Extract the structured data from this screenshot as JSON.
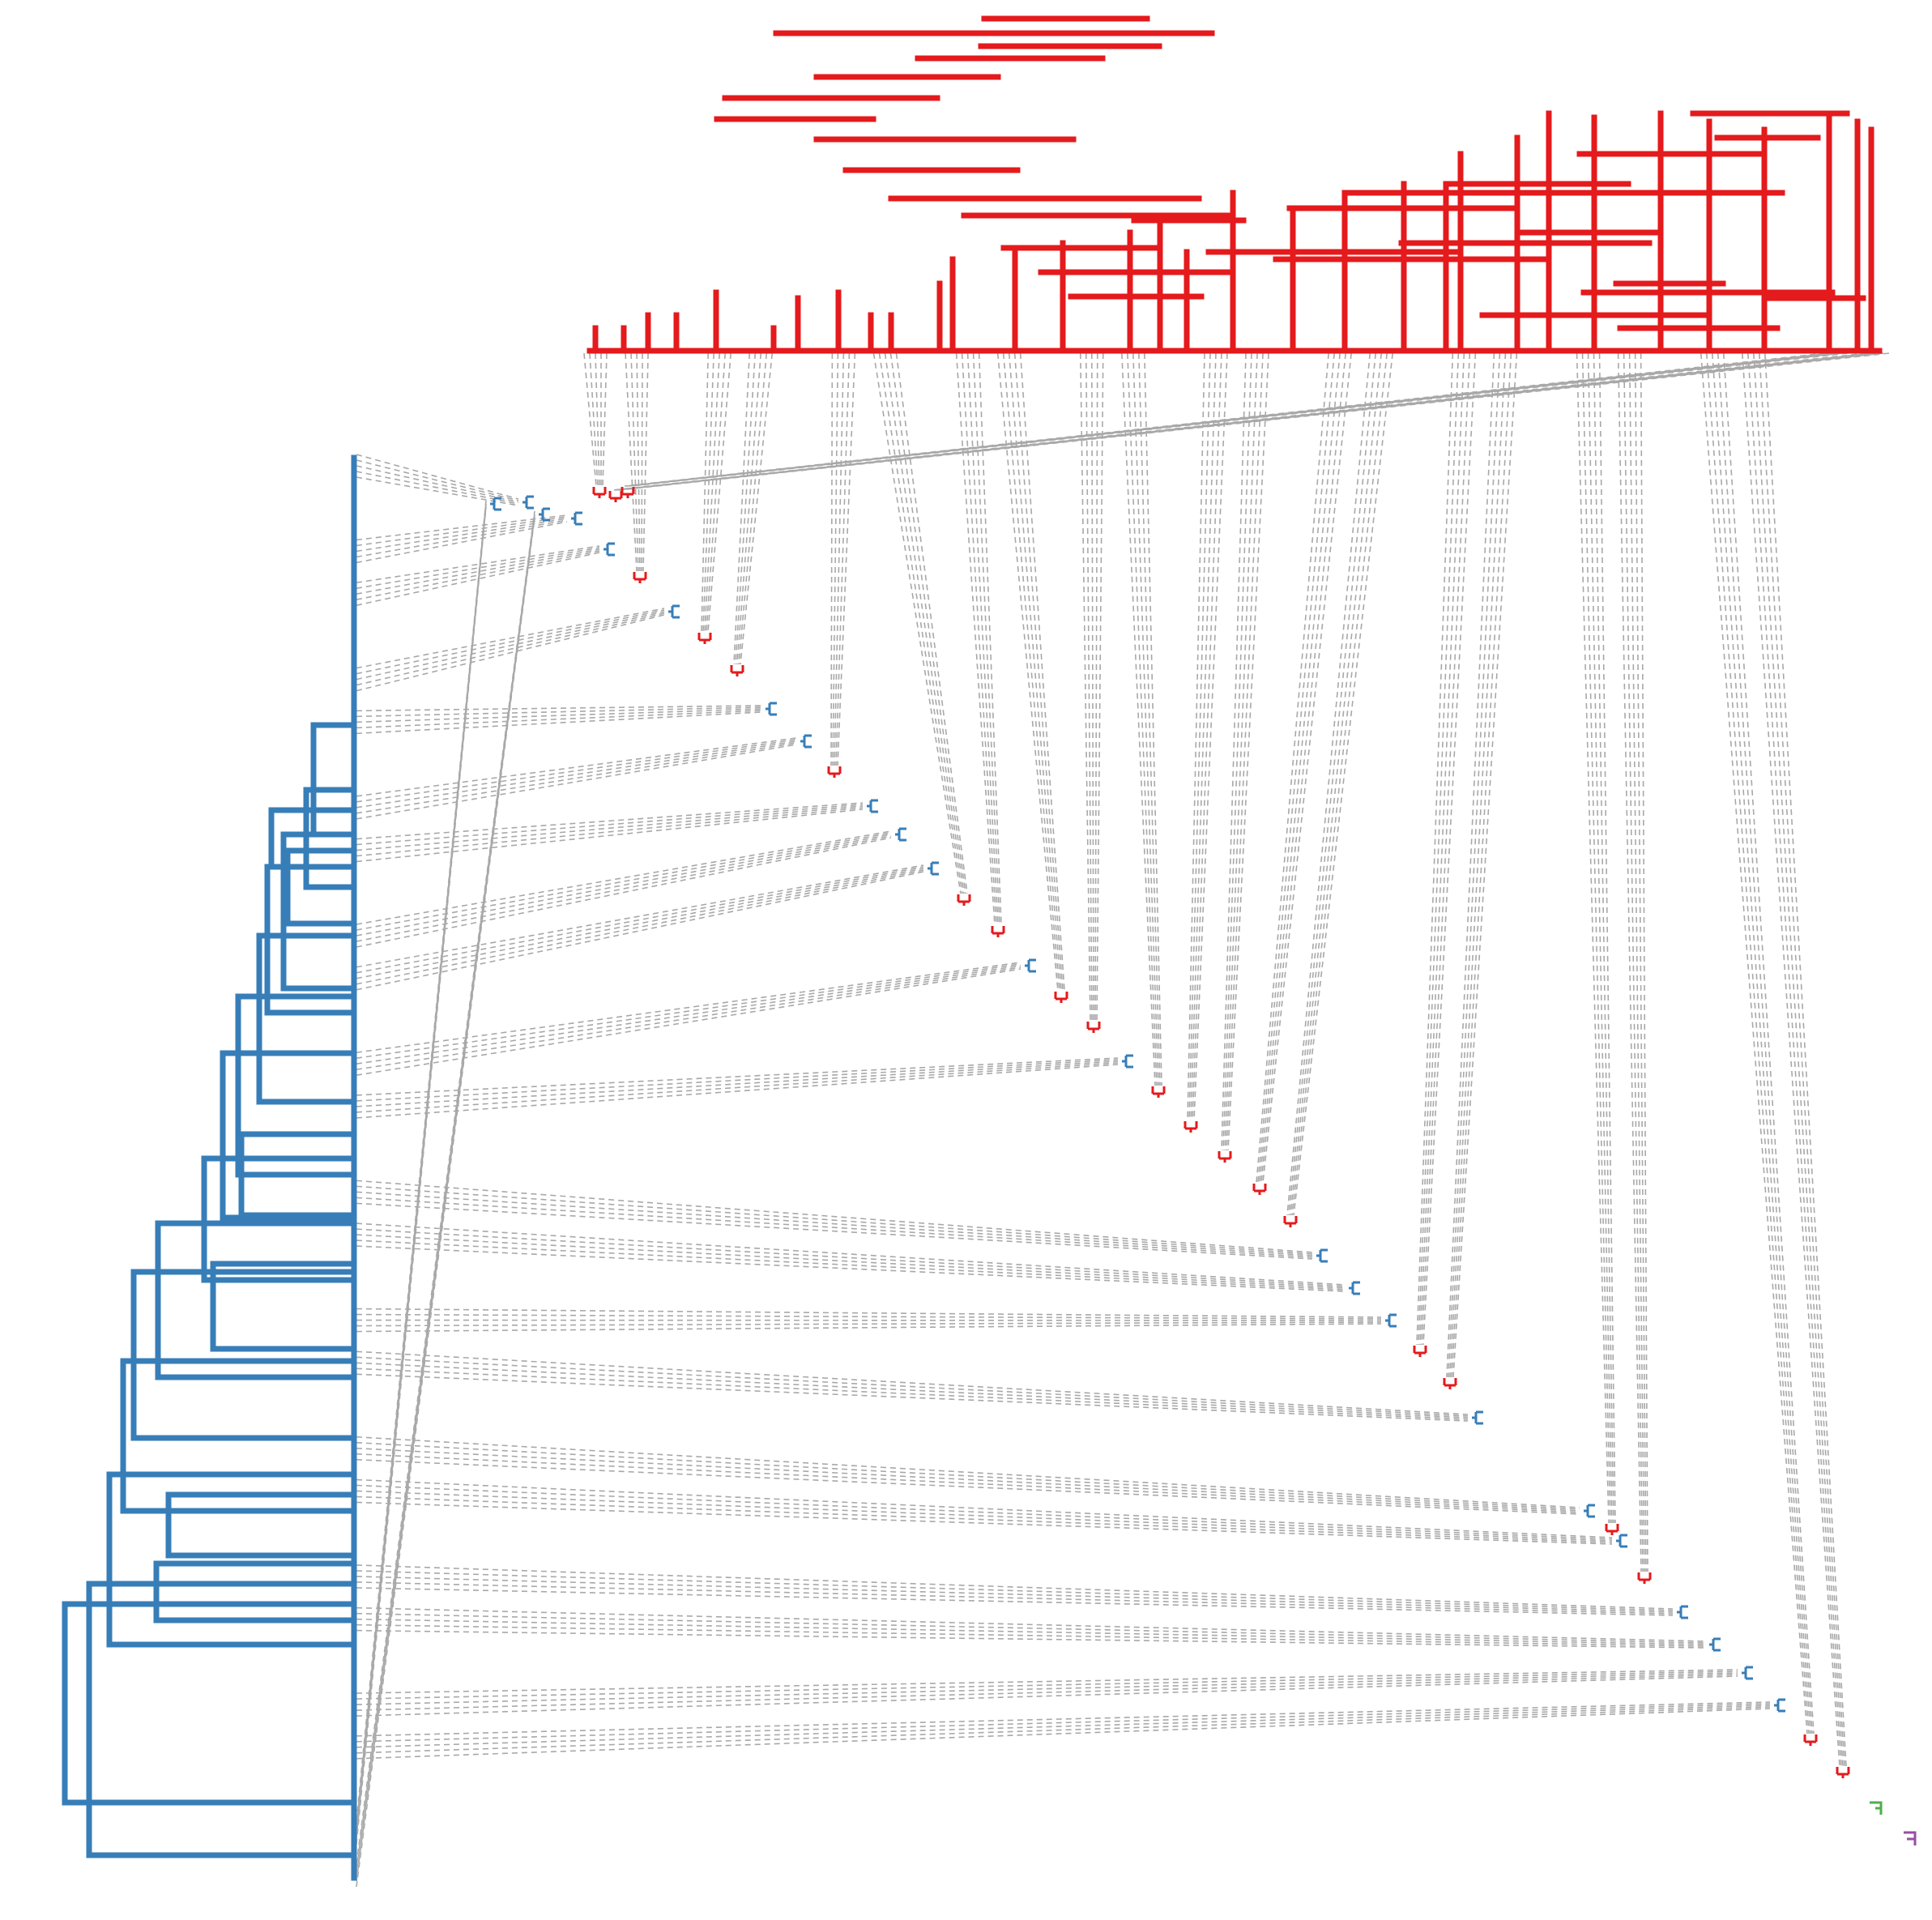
{
  "figure": {
    "type": "tanglegram",
    "colors": {
      "top_tree": "#e41a1c",
      "left_tree": "#377eb8",
      "connector": "#a8a8a8",
      "outlier_green": "#4daf4a",
      "outlier_purple": "#984ea3",
      "background": "#ffffff"
    },
    "top_tree": {
      "orientation": "down",
      "leaf_clusters": 32
    },
    "left_tree": {
      "orientation": "right",
      "leaf_clusters": 34
    },
    "diagonal_markers": {
      "count": 60,
      "outliers": [
        "green",
        "purple"
      ]
    }
  }
}
